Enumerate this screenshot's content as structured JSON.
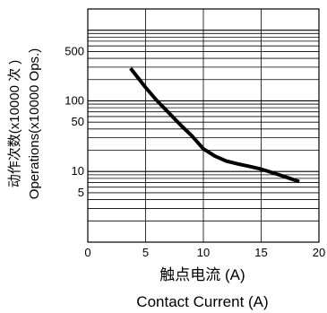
{
  "chart_data": {
    "type": "line",
    "xlabel_cn": "触点电流 (A)",
    "xlabel_en": "Contact Current (A)",
    "ylabel_cn": "动作次数(x10000 次 )",
    "ylabel_en": "Operations(x10000 Ops.)",
    "x_ticks": [
      "0",
      "5",
      "10",
      "15",
      "20"
    ],
    "y_ticks": [
      "500",
      "100",
      "50",
      "10",
      "5"
    ],
    "xlim": [
      0,
      20
    ],
    "ylim": [
      1,
      2000
    ],
    "y_scale": "log",
    "grid": true,
    "series": [
      {
        "color": "#000000",
        "x": [
          3.7,
          5.0,
          6.0,
          7.0,
          8.0,
          9.0,
          10.0,
          11.0,
          12.0,
          13.0,
          14.0,
          15.0,
          16.0,
          17.0,
          18.3
        ],
        "y": [
          290,
          155,
          100,
          68,
          46,
          32,
          21,
          16.5,
          14,
          12.8,
          11.8,
          10.8,
          9.6,
          8.5,
          7.2
        ]
      }
    ]
  }
}
